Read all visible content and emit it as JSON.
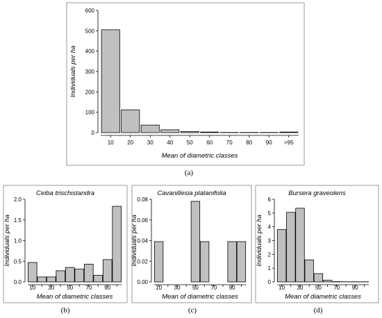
{
  "chart_data": [
    {
      "id": "a",
      "type": "bar",
      "title": "",
      "caption": "(a)",
      "xlabel": "Mean of diametric classes",
      "ylabel": "Individuals per ha",
      "categories": [
        "10",
        "20",
        "30",
        "40",
        "50",
        "60",
        "70",
        "80",
        "90",
        ">95"
      ],
      "values": [
        505,
        112,
        37,
        14,
        5,
        3,
        1,
        1,
        1,
        3
      ],
      "ylim": [
        0,
        600
      ],
      "yticks": [
        "0",
        "100",
        "200",
        "300",
        "400",
        "500",
        "600"
      ],
      "grid": false
    },
    {
      "id": "b",
      "type": "bar",
      "title": "Ceiba trischistandra",
      "caption": "(b)",
      "xlabel": "Mean of diametric classes",
      "ylabel": "Individuals per ha",
      "categories": [
        "10",
        "20",
        "30",
        "40",
        "50",
        "60",
        "70",
        "80",
        "90",
        "100"
      ],
      "xticks": [
        "10",
        "30",
        "50",
        "70",
        "90"
      ],
      "values": [
        0.47,
        0.12,
        0.12,
        0.27,
        0.35,
        0.31,
        0.43,
        0.16,
        0.54,
        1.83
      ],
      "ylim": [
        0,
        2.0
      ],
      "yticks": [
        "0.0",
        "0.5",
        "1.0",
        "1.5",
        "2.0"
      ],
      "grid": false
    },
    {
      "id": "c",
      "type": "bar",
      "title": "Cavanillesia platanifolia",
      "caption": "(c)",
      "xlabel": "Mean of diametric classes",
      "ylabel": "Individuals per ha",
      "categories": [
        "10",
        "20",
        "30",
        "40",
        "50",
        "60",
        "70",
        "80",
        "90",
        "100"
      ],
      "xticks": [
        "10",
        "30",
        "50",
        "70",
        "90"
      ],
      "values": [
        0.039,
        0,
        0,
        0,
        0.078,
        0.039,
        0,
        0,
        0.039,
        0.039
      ],
      "ylim": [
        0,
        0.08
      ],
      "yticks": [
        "0.00",
        "0.02",
        "0.04",
        "0.06",
        "0.08"
      ],
      "grid": false
    },
    {
      "id": "d",
      "type": "bar",
      "title": "Bursera graveolens",
      "caption": "(d)",
      "xlabel": "Mean of diametric classes",
      "ylabel": "Individuals per ha",
      "categories": [
        "10",
        "20",
        "30",
        "40",
        "50",
        "60",
        "70",
        "80",
        "90",
        "100"
      ],
      "xticks": [
        "10",
        "30",
        "50",
        "70",
        "90"
      ],
      "values": [
        3.8,
        5.05,
        5.35,
        1.6,
        0.6,
        0.12,
        0.02,
        0.01,
        0.01,
        0.01
      ],
      "ylim": [
        0,
        6
      ],
      "yticks": [
        "0",
        "1",
        "2",
        "3",
        "4",
        "5",
        "6"
      ],
      "grid": false
    }
  ]
}
